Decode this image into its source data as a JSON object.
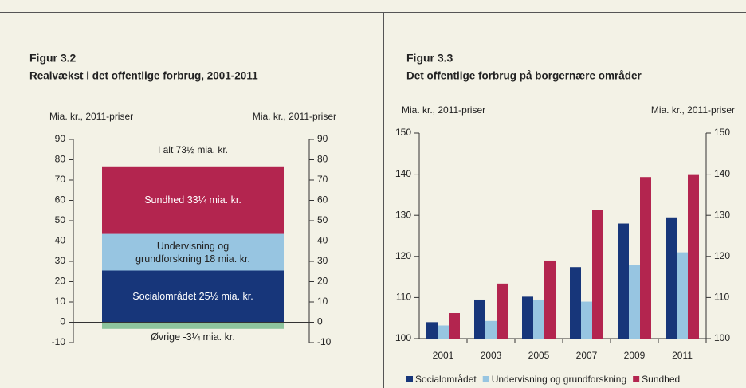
{
  "chart_data": [
    {
      "type": "bar",
      "stacked": true,
      "title": "Figur 3.2",
      "subtitle": "Realvækst i det offentlige forbrug, 2001-2011",
      "y_label": "Mia. kr., 2011-priser",
      "y2_label": "Mia. kr., 2011-priser",
      "annotation": "I alt 73½ mia. kr.",
      "categories": [
        null
      ],
      "series": [
        {
          "color": "#8dc49d",
          "values": [
            -3.25
          ],
          "value_labels": [
            "Øvrige -3¼ mia. kr."
          ]
        },
        {
          "color": "#17367a",
          "values": [
            25.5
          ],
          "value_labels": [
            "Socialområdet 25½ mia. kr."
          ]
        },
        {
          "color": "#97c5e1",
          "values": [
            18
          ],
          "value_labels": [
            "Undervisning og\ngrundforskning 18 mia. kr."
          ]
        },
        {
          "color": "#b3254f",
          "values": [
            33.25
          ],
          "value_labels": [
            "Sundhed 33¼ mia. kr."
          ]
        }
      ],
      "ylim": [
        -10,
        90
      ],
      "yticks": [
        -10,
        0,
        10,
        20,
        30,
        40,
        50,
        60,
        70,
        80,
        90
      ]
    },
    {
      "type": "bar",
      "stacked": false,
      "title": "Figur 3.3",
      "subtitle": "Det offentlige forbrug på borgernære områder",
      "y_label": "Mia. kr., 2011-priser",
      "y2_label": "Mia. kr., 2011-priser",
      "categories": [
        "2001",
        "2003",
        "2005",
        "2007",
        "2009",
        "2011"
      ],
      "series": [
        {
          "name": "Socialområdet",
          "color": "#17367a",
          "values": [
            104,
            109.5,
            110.2,
            117.4,
            128,
            129.5
          ]
        },
        {
          "name": "Undervisning og grundforskning",
          "color": "#97c5e1",
          "values": [
            103.2,
            104.3,
            109.5,
            109,
            118,
            121
          ]
        },
        {
          "name": "Sundhed",
          "color": "#b3254f",
          "values": [
            106.2,
            113.4,
            119,
            131.3,
            139.3,
            139.8
          ]
        }
      ],
      "ylim": [
        100,
        150
      ],
      "yticks": [
        100,
        110,
        120,
        130,
        140,
        150
      ],
      "legend": "bottom"
    }
  ]
}
